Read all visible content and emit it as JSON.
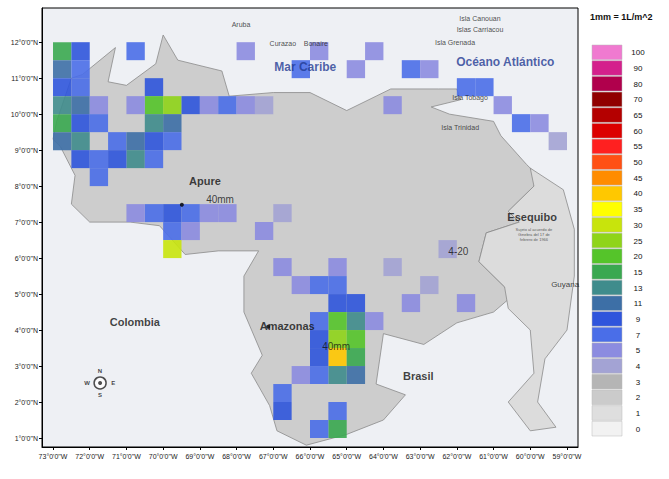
{
  "chart_data": {
    "type": "map",
    "xlim": [
      -73.3,
      -58.7
    ],
    "ylim": [
      0.75,
      12.95
    ],
    "xticks": [
      {
        "value": -73,
        "label": "73°0'0\"W"
      },
      {
        "value": -72,
        "label": "72°0'0\"W"
      },
      {
        "value": -71,
        "label": "71°0'0\"W"
      },
      {
        "value": -70,
        "label": "70°0'0\"W"
      },
      {
        "value": -69,
        "label": "69°0'0\"W"
      },
      {
        "value": -68,
        "label": "68°0'0\"W"
      },
      {
        "value": -67,
        "label": "67°0'0\"W"
      },
      {
        "value": -66,
        "label": "66°0'0\"W"
      },
      {
        "value": -65,
        "label": "65°0'0\"W"
      },
      {
        "value": -64,
        "label": "64°0'0\"W"
      },
      {
        "value": -63,
        "label": "63°0'0\"W"
      },
      {
        "value": -62,
        "label": "62°0'0\"W"
      },
      {
        "value": -61,
        "label": "61°0'0\"W"
      },
      {
        "value": -60,
        "label": "60°0'0\"W"
      },
      {
        "value": -59,
        "label": "59°0'0\"W"
      }
    ],
    "yticks": [
      {
        "value": 1,
        "label": "1°0'0\"N"
      },
      {
        "value": 2,
        "label": "2°0'0\"N"
      },
      {
        "value": 3,
        "label": "3°0'0\"N"
      },
      {
        "value": 4,
        "label": "4°0'0\"N"
      },
      {
        "value": 5,
        "label": "5°0'0\"N"
      },
      {
        "value": 6,
        "label": "6°0'0\"N"
      },
      {
        "value": 7,
        "label": "7°0'0\"N"
      },
      {
        "value": 8,
        "label": "8°0'0\"N"
      },
      {
        "value": 9,
        "label": "9°0'0\"N"
      },
      {
        "value": 10,
        "label": "10°0'0\"N"
      },
      {
        "value": 11,
        "label": "11°0'0\"N"
      },
      {
        "value": 12,
        "label": "12°0'0\"N"
      }
    ],
    "grid": false,
    "colorbar_title": "1mm = 1L/m^2",
    "colorbar_ticks": [
      0,
      1,
      2,
      3,
      4,
      5,
      7,
      9,
      11,
      13,
      15,
      20,
      25,
      30,
      35,
      40,
      45,
      50,
      55,
      60,
      65,
      70,
      80,
      90,
      100
    ],
    "colorbar_colors": [
      "#f2f2f2",
      "#dedede",
      "#cbcbcb",
      "#b5b5b5",
      "#a3a3d4",
      "#8c8ce0",
      "#4a6ee8",
      "#2f55dc",
      "#3d6fa6",
      "#3f8c8c",
      "#3aa850",
      "#55c42a",
      "#8fd418",
      "#c8e40c",
      "#ffff00",
      "#ffc800",
      "#ff8c00",
      "#ff5014",
      "#ff2020",
      "#dc0000",
      "#b40000",
      "#900000",
      "#b0004c",
      "#d4208c",
      "#f07ad0"
    ],
    "land": [
      [
        [
          -72.2,
          11.1
        ],
        [
          -71.3,
          11.85
        ],
        [
          -71.5,
          10.9
        ],
        [
          -71.0,
          10.8
        ],
        [
          -70.2,
          11.4
        ],
        [
          -70.0,
          12.2
        ],
        [
          -69.6,
          11.5
        ],
        [
          -68.4,
          11.2
        ],
        [
          -68.2,
          10.5
        ],
        [
          -67.0,
          10.6
        ],
        [
          -66.0,
          10.6
        ],
        [
          -65.0,
          10.1
        ],
        [
          -64.2,
          10.5
        ],
        [
          -63.8,
          10.7
        ],
        [
          -62.5,
          10.7
        ],
        [
          -62.0,
          10.7
        ],
        [
          -61.9,
          10.4
        ],
        [
          -62.7,
          10.2
        ],
        [
          -62.2,
          10.0
        ],
        [
          -61.0,
          9.8
        ],
        [
          -60.8,
          9.4
        ],
        [
          -60.1,
          8.6
        ],
        [
          -59.8,
          8.3
        ],
        [
          -59.9,
          8.0
        ],
        [
          -60.6,
          7.3
        ],
        [
          -60.3,
          7.0
        ],
        [
          -61.2,
          6.7
        ],
        [
          -61.4,
          5.9
        ],
        [
          -60.7,
          5.2
        ],
        [
          -60.2,
          5.2
        ],
        [
          -61.0,
          4.5
        ],
        [
          -62.0,
          4.2
        ],
        [
          -62.9,
          3.6
        ],
        [
          -64.0,
          3.9
        ],
        [
          -64.2,
          2.5
        ],
        [
          -63.4,
          2.2
        ],
        [
          -64.0,
          1.5
        ],
        [
          -65.0,
          1.1
        ],
        [
          -66.1,
          0.8
        ],
        [
          -66.9,
          1.2
        ],
        [
          -67.1,
          1.9
        ],
        [
          -67.6,
          2.8
        ],
        [
          -67.3,
          3.3
        ],
        [
          -67.8,
          4.5
        ],
        [
          -67.8,
          5.5
        ],
        [
          -67.4,
          6.2
        ],
        [
          -68.5,
          6.2
        ],
        [
          -69.4,
          6.1
        ],
        [
          -70.1,
          6.9
        ],
        [
          -70.9,
          7.0
        ],
        [
          -72.0,
          7.0
        ],
        [
          -72.5,
          7.5
        ],
        [
          -72.4,
          8.3
        ],
        [
          -72.8,
          9.1
        ],
        [
          -73.0,
          9.3
        ],
        [
          -72.9,
          9.8
        ],
        [
          -72.5,
          11.0
        ]
      ],
      [
        [
          -60.0,
          8.5
        ],
        [
          -59.1,
          7.9
        ],
        [
          -58.8,
          6.8
        ],
        [
          -58.8,
          5.5
        ],
        [
          -59.0,
          4.0
        ],
        [
          -59.6,
          3.2
        ],
        [
          -59.8,
          2.0
        ],
        [
          -59.3,
          1.3
        ],
        [
          -60.0,
          1.2
        ],
        [
          -60.6,
          2.0
        ],
        [
          -59.9,
          2.8
        ],
        [
          -60.0,
          4.0
        ],
        [
          -60.6,
          4.6
        ],
        [
          -60.7,
          5.2
        ],
        [
          -61.4,
          5.9
        ],
        [
          -61.2,
          6.7
        ],
        [
          -60.3,
          7.0
        ],
        [
          -60.6,
          7.3
        ],
        [
          -59.9,
          8.0
        ]
      ]
    ],
    "cells": [
      [
        -72.75,
        11.75,
        15
      ],
      [
        -72.25,
        11.75,
        9
      ],
      [
        -72.75,
        11.25,
        11
      ],
      [
        -72.25,
        11.25,
        7
      ],
      [
        -72.75,
        10.75,
        9
      ],
      [
        -72.25,
        10.75,
        7
      ],
      [
        -72.75,
        10.25,
        13
      ],
      [
        -72.25,
        10.25,
        11
      ],
      [
        -72.75,
        9.75,
        15
      ],
      [
        -72.25,
        9.75,
        9
      ],
      [
        -72.75,
        9.25,
        11
      ],
      [
        -72.25,
        9.25,
        13
      ],
      [
        -72.25,
        8.75,
        9
      ],
      [
        -71.75,
        8.75,
        7
      ],
      [
        -71.75,
        10.25,
        5
      ],
      [
        -71.75,
        9.75,
        7
      ],
      [
        -71.25,
        9.25,
        7
      ],
      [
        -70.25,
        10.75,
        9
      ],
      [
        -70.25,
        10.25,
        20
      ],
      [
        -69.75,
        10.25,
        25
      ],
      [
        -69.75,
        9.75,
        11
      ],
      [
        -70.25,
        9.75,
        13
      ],
      [
        -69.25,
        10.25,
        9
      ],
      [
        -70.75,
        9.25,
        11
      ],
      [
        -70.25,
        9.25,
        9
      ],
      [
        -70.75,
        8.75,
        13
      ],
      [
        -71.25,
        8.75,
        9
      ],
      [
        -70.25,
        8.75,
        7
      ],
      [
        -69.75,
        9.25,
        7
      ],
      [
        -71.75,
        8.25,
        7
      ],
      [
        -70.75,
        10.25,
        5
      ],
      [
        -68.75,
        10.25,
        5
      ],
      [
        -68.25,
        10.25,
        7
      ],
      [
        -67.75,
        10.25,
        5
      ],
      [
        -67.25,
        10.25,
        4
      ],
      [
        -70.75,
        11.75,
        7
      ],
      [
        -67.75,
        11.75,
        5
      ],
      [
        -66.25,
        11.25,
        7
      ],
      [
        -65.75,
        11.75,
        5
      ],
      [
        -64.75,
        11.25,
        5
      ],
      [
        -64.25,
        11.75,
        5
      ],
      [
        -63.25,
        11.25,
        7
      ],
      [
        -62.75,
        11.25,
        5
      ],
      [
        -61.75,
        10.75,
        7
      ],
      [
        -61.25,
        10.75,
        7
      ],
      [
        -60.75,
        10.25,
        5
      ],
      [
        -60.25,
        9.75,
        7
      ],
      [
        -59.75,
        9.75,
        5
      ],
      [
        -59.25,
        9.25,
        4
      ],
      [
        -63.75,
        10.25,
        5
      ],
      [
        -70.25,
        7.25,
        7
      ],
      [
        -69.75,
        7.25,
        9
      ],
      [
        -69.25,
        7.25,
        7
      ],
      [
        -68.75,
        7.25,
        5
      ],
      [
        -68.25,
        7.25,
        5
      ],
      [
        -70.75,
        7.25,
        5
      ],
      [
        -69.75,
        6.75,
        7
      ],
      [
        -69.75,
        6.25,
        30
      ],
      [
        -69.25,
        6.75,
        5
      ],
      [
        -67.25,
        6.75,
        5
      ],
      [
        -66.75,
        7.25,
        4
      ],
      [
        -65.25,
        5.75,
        5
      ],
      [
        -66.25,
        5.25,
        5
      ],
      [
        -65.75,
        5.25,
        7
      ],
      [
        -65.25,
        5.25,
        7
      ],
      [
        -64.75,
        4.75,
        9
      ],
      [
        -65.25,
        4.75,
        9
      ],
      [
        -64.75,
        4.25,
        13
      ],
      [
        -65.25,
        4.25,
        20
      ],
      [
        -65.75,
        4.25,
        7
      ],
      [
        -64.25,
        4.25,
        5
      ],
      [
        -65.25,
        3.75,
        25
      ],
      [
        -64.75,
        3.75,
        20
      ],
      [
        -65.75,
        3.75,
        9
      ],
      [
        -65.25,
        3.25,
        40
      ],
      [
        -64.75,
        3.25,
        15
      ],
      [
        -65.75,
        3.25,
        9
      ],
      [
        -64.75,
        2.75,
        11
      ],
      [
        -65.25,
        2.75,
        13
      ],
      [
        -65.75,
        2.75,
        7
      ],
      [
        -66.75,
        2.25,
        7
      ],
      [
        -66.75,
        1.75,
        9
      ],
      [
        -65.25,
        1.75,
        7
      ],
      [
        -65.25,
        1.25,
        15
      ],
      [
        -65.75,
        1.25,
        7
      ],
      [
        -66.25,
        2.75,
        5
      ],
      [
        -63.25,
        4.75,
        5
      ],
      [
        -62.75,
        5.25,
        4
      ],
      [
        -61.75,
        4.75,
        5
      ],
      [
        -62.25,
        6.25,
        4
      ],
      [
        -63.75,
        5.75,
        4
      ],
      [
        -66.75,
        5.75,
        5
      ]
    ],
    "markers": [
      [
        -69.49,
        7.48
      ],
      [
        -67.14,
        4.09
      ]
    ],
    "annotations": {
      "seas": [
        {
          "text": "Mar Caribe",
          "x": -66.13,
          "y": 11.31
        },
        {
          "text": "Océano Atlántico",
          "x": -60.68,
          "y": 11.45
        }
      ],
      "islands": [
        {
          "text": "Aruba",
          "x": -67.88,
          "y": 12.5
        },
        {
          "text": "Curazao",
          "x": -66.74,
          "y": 11.96
        },
        {
          "text": "Bonaire",
          "x": -65.84,
          "y": 11.96
        },
        {
          "text": "Isla Canouan",
          "x": -61.37,
          "y": 12.67
        },
        {
          "text": "Islas Carriacou",
          "x": -61.37,
          "y": 12.34
        },
        {
          "text": "Isla Grenada",
          "x": -62.05,
          "y": 11.98
        },
        {
          "text": "Isla Tobago",
          "x": -61.64,
          "y": 10.45
        },
        {
          "text": "Isla Trinidad",
          "x": -61.91,
          "y": 9.64
        }
      ],
      "places": [
        {
          "text": "Apure",
          "x": -68.86,
          "y": 8.14
        },
        {
          "text": "Amazonas",
          "x": -66.62,
          "y": 4.12
        }
      ],
      "rain_totals": [
        {
          "text": "40mm",
          "x": -68.45,
          "y": 7.62
        },
        {
          "text": "40mm",
          "x": -65.29,
          "y": 3.53
        },
        {
          "text": "4-20",
          "x": -61.96,
          "y": 6.17
        }
      ],
      "countries": [
        {
          "text": "Colombia",
          "x": -70.77,
          "y": 4.23
        },
        {
          "text": "Brasil",
          "x": -63.05,
          "y": 2.73
        },
        {
          "text": "Guyana",
          "x": -59.05,
          "y": 5.26
        },
        {
          "text": "Esequibo",
          "x": -59.95,
          "y": 7.14
        }
      ],
      "notes": [
        {
          "lines": [
            "Sujeto al acuerdo de",
            "Ginebra del 17 de",
            "febrero de 1966"
          ],
          "x": -59.9,
          "y": 6.65
        }
      ],
      "compass": [
        {
          "text": "N",
          "x": -71.72,
          "y": 2.86
        },
        {
          "text": "S",
          "x": -71.72,
          "y": 2.2
        },
        {
          "text": "W",
          "x": -72.07,
          "y": 2.53
        },
        {
          "text": "E",
          "x": -71.36,
          "y": 2.53
        }
      ]
    }
  }
}
